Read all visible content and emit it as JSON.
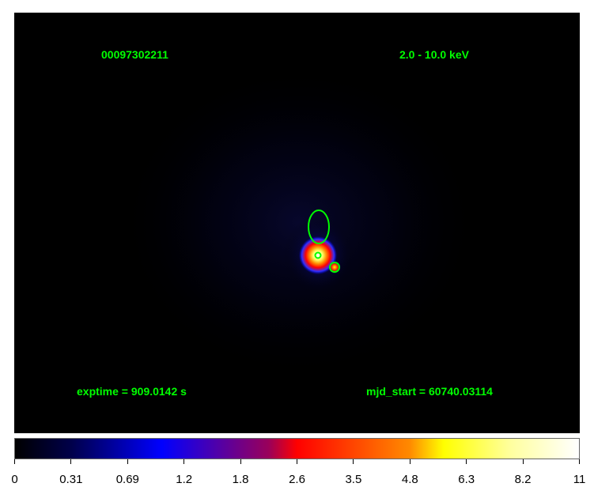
{
  "image": {
    "obsid": "00097302211",
    "energy_band": "2.0 - 10.0 keV",
    "exptime": "exptime = 909.0142 s",
    "mjd_start": "mjd_start = 60740.03114",
    "region_color": "#00ff00",
    "colormap": "heat"
  },
  "colorbar": {
    "ticks": [
      "0",
      "0.31",
      "0.69",
      "1.2",
      "1.8",
      "2.6",
      "3.5",
      "4.8",
      "6.3",
      "8.2",
      "11"
    ]
  }
}
